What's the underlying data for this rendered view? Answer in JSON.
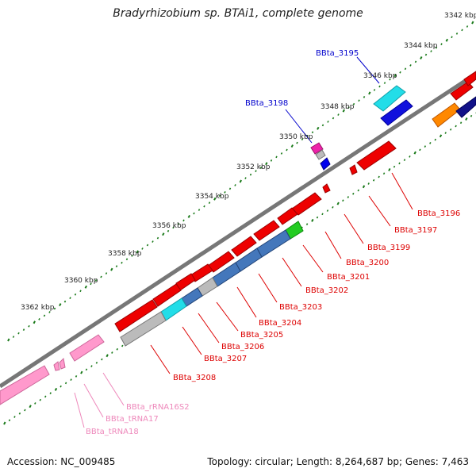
{
  "title": "Bradyrhizobium sp. BTAi1, complete genome",
  "footer": {
    "accession": "Accession: NC_009485",
    "topology": "Topology: circular; Length: 8,264,687 bp; Genes: 7,463"
  },
  "colors": {
    "backbone": "#888888",
    "tick": "#1a7a1a",
    "label_forward": "#0000cc",
    "label_reverse": "#dd0000",
    "label_rna": "#ee88bb"
  },
  "scale_labels": [
    "3342 kbp",
    "3344 kbp",
    "3346 kbp",
    "3348 kbp",
    "3350 kbp",
    "3352 kbp",
    "3354 kbp",
    "3356 kbp",
    "3358 kbp",
    "3360 kbp",
    "3362 kbp"
  ],
  "gene_labels": [
    {
      "text": "BBta_3195",
      "color": "blue"
    },
    {
      "text": "BBta_3198",
      "color": "blue"
    },
    {
      "text": "BBta_3196",
      "color": "red"
    },
    {
      "text": "BBta_3197",
      "color": "red"
    },
    {
      "text": "BBta_3199",
      "color": "red"
    },
    {
      "text": "BBta_3200",
      "color": "red"
    },
    {
      "text": "BBta_3201",
      "color": "red"
    },
    {
      "text": "BBta_3202",
      "color": "red"
    },
    {
      "text": "BBta_3203",
      "color": "red"
    },
    {
      "text": "BBta_3204",
      "color": "red"
    },
    {
      "text": "BBta_3205",
      "color": "red"
    },
    {
      "text": "BBta_3206",
      "color": "red"
    },
    {
      "text": "BBta_3207",
      "color": "red"
    },
    {
      "text": "BBta_3208",
      "color": "red"
    },
    {
      "text": "BBta_rRNA16S2",
      "color": "pink"
    },
    {
      "text": "BBta_tRNA17",
      "color": "pink"
    },
    {
      "text": "BBta_tRNA18",
      "color": "pink"
    }
  ]
}
